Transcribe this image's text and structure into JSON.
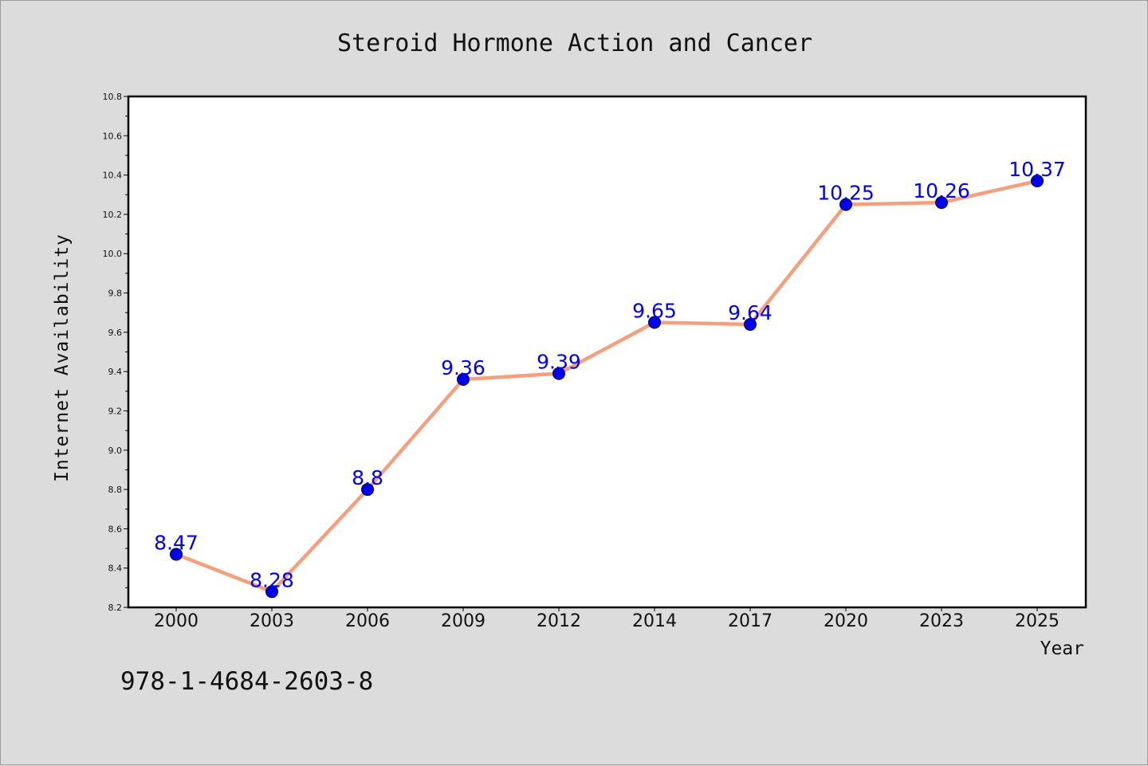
{
  "chart_data": {
    "type": "line",
    "title": "Steroid Hormone Action and Cancer",
    "xlabel": "Year",
    "ylabel": "Internet Availability",
    "categories": [
      "2000",
      "2003",
      "2006",
      "2009",
      "2012",
      "2014",
      "2017",
      "2020",
      "2023",
      "2025"
    ],
    "series": [
      {
        "values": [
          8.47,
          8.28,
          8.8,
          9.36,
          9.39,
          9.65,
          9.64,
          10.25,
          10.26,
          10.37
        ],
        "labels": [
          "8.47",
          "8.28",
          "8.8",
          "9.36",
          "9.39",
          "9.65",
          "9.64",
          "10.25",
          "10.26",
          "10.37"
        ]
      }
    ],
    "ylim": [
      8.2,
      10.8
    ],
    "yticks": [
      "8.2",
      "8.4",
      "8.6",
      "8.8",
      "9.0",
      "9.2",
      "9.4",
      "9.6",
      "9.8",
      "10.0",
      "10.2",
      "10.4",
      "10.6",
      "10.8"
    ],
    "grid": false,
    "line_color": "#f4a07e",
    "marker_color": "#0000ee",
    "label_color": "#0000ee",
    "background_color": "#dcdcdc",
    "plot_background": "#ffffff"
  },
  "footer": {
    "isbn": "978-1-4684-2603-8"
  }
}
